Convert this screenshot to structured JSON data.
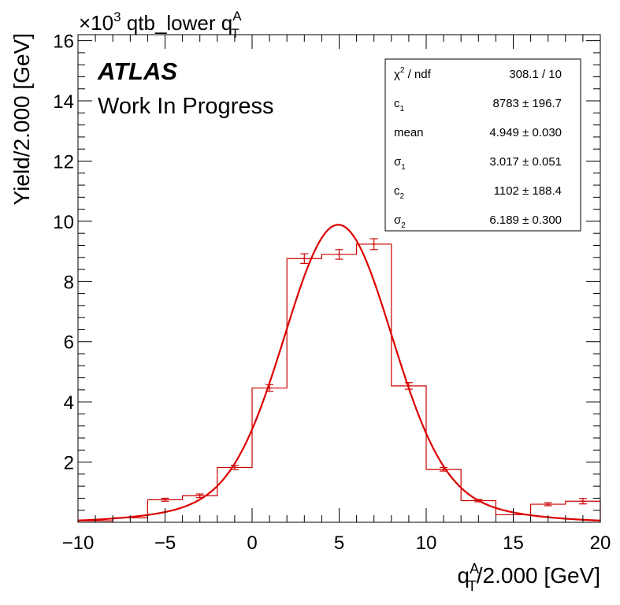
{
  "chart_data": {
    "type": "bar",
    "title_prefix": "×10",
    "title_exponent": "3",
    "title": "qtb_lower q",
    "title_sup": "A",
    "title_sub": "T",
    "xlabel_main": "q",
    "xlabel_sup": "A",
    "xlabel_sub": "T",
    "xlabel_rest": "/2.000 [GeV]",
    "ylabel": "Yield/2.000 [GeV]",
    "xlim": [
      -10,
      20
    ],
    "ylim": [
      0,
      16.2
    ],
    "x_ticks": [
      -10,
      -5,
      0,
      5,
      10,
      15,
      20
    ],
    "y_ticks": [
      2,
      4,
      6,
      8,
      10,
      12,
      14,
      16
    ],
    "atlas_label": "ATLAS",
    "atlas_sub": "Work In Progress",
    "histogram": {
      "bin_edges": [
        -10,
        -8,
        -6,
        -4,
        -2,
        0,
        2,
        4,
        6,
        8,
        10,
        12,
        14,
        16,
        18,
        20
      ],
      "values": [
        0.05,
        0.15,
        0.75,
        0.88,
        1.82,
        4.46,
        8.76,
        8.9,
        9.24,
        4.53,
        1.76,
        0.72,
        0.25,
        0.6,
        0.7
      ],
      "errors": [
        0.03,
        0.05,
        0.05,
        0.06,
        0.07,
        0.11,
        0.16,
        0.16,
        0.18,
        0.11,
        0.06,
        0.04,
        0.03,
        0.05,
        0.09
      ],
      "show_errors": [
        false,
        false,
        true,
        true,
        true,
        true,
        true,
        true,
        true,
        true,
        true,
        true,
        false,
        true,
        true
      ],
      "color": "#cc0000"
    },
    "fit": {
      "c1": 8.783,
      "mean": 4.949,
      "sigma1": 3.017,
      "c2": 1.102,
      "sigma2": 6.189,
      "color": "#dd0000"
    },
    "stats_box": [
      {
        "label": "χ",
        "sup": "2",
        "label_rest": " / ndf",
        "value": "308.1 / 10"
      },
      {
        "label": "c",
        "sub": "1",
        "value": "8783 ± 196.7"
      },
      {
        "label": "mean",
        "value": "4.949 ± 0.030"
      },
      {
        "label": "σ",
        "sub": "1",
        "value": "3.017 ± 0.051"
      },
      {
        "label": "c",
        "sub": "2",
        "value": "1102 ± 188.4"
      },
      {
        "label": "σ",
        "sub": "2",
        "value": "6.189 ± 0.300"
      }
    ]
  }
}
